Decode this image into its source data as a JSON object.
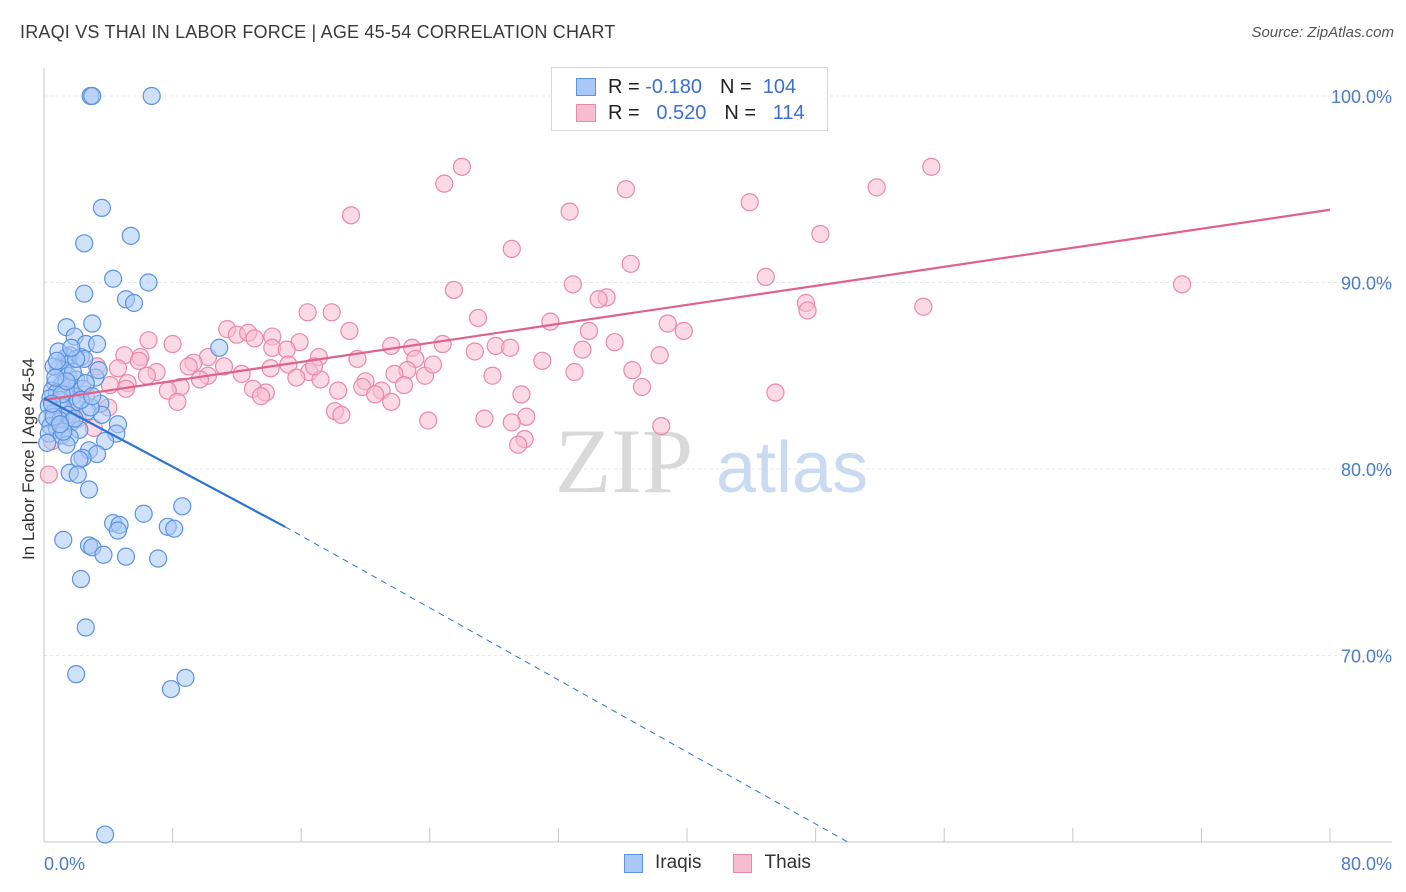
{
  "title": "IRAQI VS THAI IN LABOR FORCE | AGE 45-54 CORRELATION CHART",
  "source": "Source: ZipAtlas.com",
  "colors": {
    "iraqis_fill": "#a9c8f5",
    "iraqis_stroke": "#5b93e0",
    "iraqis_line": "#2e72d2",
    "thais_fill": "#f7bcd0",
    "thais_stroke": "#e889a8",
    "thais_line": "#e0608e",
    "axis_text": "#4a7cc7",
    "grid": "#e8e8e8"
  },
  "legend": {
    "rows": [
      {
        "r_label": "R =",
        "r_value": "-0.180",
        "n_label": "N =",
        "n_value": "104"
      },
      {
        "r_label": "R =",
        "r_value": "0.520",
        "n_label": "N =",
        "n_value": "114"
      }
    ]
  },
  "bottom_legend": {
    "iraqis": "Iraqis",
    "thais": "Thais"
  },
  "watermark": {
    "zip": "ZIP",
    "atlas": "atlas"
  },
  "chart_data": {
    "type": "scatter",
    "title": "IRAQI VS THAI IN LABOR FORCE | AGE 45-54 CORRELATION CHART",
    "xlabel": "",
    "ylabel": "In Labor Force | Age 45-54",
    "xlim": [
      0,
      80
    ],
    "ylim": [
      60,
      101.5
    ],
    "x_tick_labels": [
      "0.0%",
      "80.0%"
    ],
    "y_ticks": [
      70,
      80,
      90,
      100
    ],
    "y_tick_labels": [
      "70.0%",
      "80.0%",
      "90.0%",
      "100.0%"
    ],
    "grid": true,
    "legend_position": "top-center",
    "series": [
      {
        "name": "Iraqis",
        "r": -0.18,
        "n": 104,
        "trend": {
          "x": [
            0,
            15
          ],
          "y": [
            83.8,
            76.9
          ]
        },
        "trend_dashed": {
          "x": [
            15,
            50
          ],
          "y": [
            76.9,
            60.0
          ]
        },
        "points": [
          [
            2.9,
            100
          ],
          [
            3.0,
            100
          ],
          [
            6.7,
            100
          ],
          [
            3.6,
            94
          ],
          [
            5.4,
            92.5
          ],
          [
            2.5,
            92.1
          ],
          [
            4.3,
            90.2
          ],
          [
            6.5,
            90
          ],
          [
            5.1,
            89.1
          ],
          [
            5.6,
            88.9
          ],
          [
            2.5,
            89.4
          ],
          [
            3.0,
            87.8
          ],
          [
            1.4,
            87.6
          ],
          [
            1.9,
            87.1
          ],
          [
            2.6,
            86.7
          ],
          [
            3.3,
            86.7
          ],
          [
            1.6,
            86.1
          ],
          [
            1.4,
            86.0
          ],
          [
            2.3,
            86.0
          ],
          [
            2.5,
            85.9
          ],
          [
            1.3,
            85.6
          ],
          [
            0.9,
            85.4
          ],
          [
            1.2,
            85.3
          ],
          [
            0.6,
            85.5
          ],
          [
            1.5,
            85.0
          ],
          [
            2.0,
            84.8
          ],
          [
            0.7,
            84.6
          ],
          [
            1.1,
            84.5
          ],
          [
            1.6,
            84.4
          ],
          [
            0.5,
            84.2
          ],
          [
            0.8,
            84.1
          ],
          [
            1.3,
            84.0
          ],
          [
            1.8,
            83.9
          ],
          [
            0.4,
            83.8
          ],
          [
            1.0,
            83.7
          ],
          [
            2.1,
            83.6
          ],
          [
            3.5,
            83.5
          ],
          [
            0.3,
            83.4
          ],
          [
            1.2,
            83.3
          ],
          [
            2.7,
            83.1
          ],
          [
            0.6,
            83.0
          ],
          [
            1.5,
            82.9
          ],
          [
            3.6,
            82.9
          ],
          [
            0.2,
            82.7
          ],
          [
            1.0,
            82.6
          ],
          [
            1.7,
            82.5
          ],
          [
            4.6,
            82.4
          ],
          [
            0.4,
            82.3
          ],
          [
            0.8,
            82.2
          ],
          [
            2.2,
            82.1
          ],
          [
            0.3,
            81.9
          ],
          [
            1.1,
            81.8
          ],
          [
            4.5,
            81.9
          ],
          [
            1.6,
            81.7
          ],
          [
            3.8,
            81.5
          ],
          [
            0.2,
            81.4
          ],
          [
            1.4,
            81.3
          ],
          [
            2.8,
            81.0
          ],
          [
            3.3,
            80.8
          ],
          [
            2.4,
            80.6
          ],
          [
            2.2,
            80.5
          ],
          [
            1.6,
            79.8
          ],
          [
            2.1,
            79.7
          ],
          [
            2.8,
            78.9
          ],
          [
            8.6,
            78.0
          ],
          [
            6.2,
            77.6
          ],
          [
            4.3,
            77.1
          ],
          [
            4.7,
            77.0
          ],
          [
            7.7,
            76.9
          ],
          [
            8.1,
            76.8
          ],
          [
            4.6,
            76.7
          ],
          [
            1.2,
            76.2
          ],
          [
            2.8,
            75.9
          ],
          [
            3.0,
            75.8
          ],
          [
            3.7,
            75.4
          ],
          [
            5.1,
            75.3
          ],
          [
            7.1,
            75.2
          ],
          [
            2.3,
            74.1
          ],
          [
            2.6,
            71.5
          ],
          [
            2.0,
            69.0
          ],
          [
            8.8,
            68.8
          ],
          [
            7.9,
            68.2
          ],
          [
            3.8,
            60.4
          ],
          [
            10.9,
            86.5
          ],
          [
            1.1,
            84.0
          ],
          [
            2.4,
            84.3
          ],
          [
            1.8,
            85.2
          ],
          [
            0.6,
            82.8
          ],
          [
            2.9,
            83.3
          ],
          [
            1.9,
            82.7
          ],
          [
            3.2,
            84.9
          ],
          [
            0.9,
            86.3
          ],
          [
            2.0,
            85.9
          ],
          [
            1.4,
            84.7
          ],
          [
            0.5,
            83.5
          ],
          [
            2.6,
            84.6
          ],
          [
            1.2,
            82.0
          ],
          [
            3.4,
            85.3
          ],
          [
            1.7,
            86.5
          ],
          [
            0.8,
            85.8
          ],
          [
            2.3,
            83.7
          ],
          [
            1.0,
            82.4
          ],
          [
            0.7,
            84.9
          ],
          [
            3.0,
            83.9
          ]
        ]
      },
      {
        "name": "Thais",
        "r": 0.52,
        "n": 114,
        "trend": {
          "x": [
            0,
            80
          ],
          "y": [
            83.7,
            93.9
          ]
        },
        "points": [
          [
            41.7,
            100
          ],
          [
            26.0,
            96.2
          ],
          [
            55.2,
            96.2
          ],
          [
            24.9,
            95.3
          ],
          [
            36.2,
            95.0
          ],
          [
            51.8,
            95.1
          ],
          [
            43.9,
            94.3
          ],
          [
            32.7,
            93.8
          ],
          [
            19.1,
            93.6
          ],
          [
            48.3,
            92.6
          ],
          [
            29.1,
            91.8
          ],
          [
            36.5,
            91.0
          ],
          [
            44.9,
            90.3
          ],
          [
            32.9,
            89.9
          ],
          [
            70.8,
            89.9
          ],
          [
            25.5,
            89.6
          ],
          [
            35.0,
            89.2
          ],
          [
            34.5,
            89.1
          ],
          [
            47.4,
            88.9
          ],
          [
            54.7,
            88.7
          ],
          [
            16.4,
            88.4
          ],
          [
            17.9,
            88.4
          ],
          [
            27.0,
            88.1
          ],
          [
            47.5,
            88.5
          ],
          [
            31.5,
            87.9
          ],
          [
            38.8,
            87.8
          ],
          [
            39.8,
            87.4
          ],
          [
            19.0,
            87.4
          ],
          [
            33.9,
            87.4
          ],
          [
            11.4,
            87.5
          ],
          [
            12.0,
            87.2
          ],
          [
            12.7,
            87.3
          ],
          [
            13.1,
            87.0
          ],
          [
            14.2,
            87.1
          ],
          [
            6.5,
            86.9
          ],
          [
            8.0,
            86.7
          ],
          [
            15.9,
            86.8
          ],
          [
            24.8,
            86.7
          ],
          [
            21.6,
            86.6
          ],
          [
            28.1,
            86.6
          ],
          [
            29.0,
            86.5
          ],
          [
            14.2,
            86.5
          ],
          [
            22.9,
            86.5
          ],
          [
            15.1,
            86.4
          ],
          [
            33.5,
            86.4
          ],
          [
            5.0,
            86.1
          ],
          [
            6.0,
            86.0
          ],
          [
            10.2,
            86.0
          ],
          [
            17.1,
            86.0
          ],
          [
            23.1,
            85.9
          ],
          [
            38.3,
            86.1
          ],
          [
            5.9,
            85.8
          ],
          [
            9.3,
            85.7
          ],
          [
            11.2,
            85.5
          ],
          [
            15.2,
            85.6
          ],
          [
            3.3,
            85.5
          ],
          [
            4.6,
            85.4
          ],
          [
            7.0,
            85.2
          ],
          [
            14.1,
            85.4
          ],
          [
            16.5,
            85.2
          ],
          [
            22.6,
            85.3
          ],
          [
            36.6,
            85.3
          ],
          [
            21.8,
            85.1
          ],
          [
            6.4,
            85.0
          ],
          [
            10.2,
            85.0
          ],
          [
            23.7,
            85.0
          ],
          [
            9.7,
            84.8
          ],
          [
            17.2,
            84.8
          ],
          [
            5.2,
            84.6
          ],
          [
            20.0,
            84.7
          ],
          [
            4.1,
            84.5
          ],
          [
            8.5,
            84.4
          ],
          [
            13.0,
            84.3
          ],
          [
            19.8,
            84.4
          ],
          [
            37.2,
            84.4
          ],
          [
            7.7,
            84.2
          ],
          [
            13.8,
            84.1
          ],
          [
            18.3,
            84.2
          ],
          [
            21.0,
            84.2
          ],
          [
            2.6,
            84.0
          ],
          [
            13.5,
            83.9
          ],
          [
            20.6,
            84.0
          ],
          [
            29.7,
            84.0
          ],
          [
            45.5,
            84.1
          ],
          [
            8.3,
            83.6
          ],
          [
            21.6,
            83.6
          ],
          [
            4.0,
            83.3
          ],
          [
            18.1,
            83.1
          ],
          [
            18.5,
            82.9
          ],
          [
            30.0,
            82.8
          ],
          [
            23.9,
            82.6
          ],
          [
            27.4,
            82.7
          ],
          [
            29.1,
            82.5
          ],
          [
            38.4,
            82.3
          ],
          [
            29.9,
            81.6
          ],
          [
            29.5,
            81.3
          ],
          [
            3.1,
            82.2
          ],
          [
            1.6,
            83.0
          ],
          [
            2.1,
            82.7
          ],
          [
            0.5,
            81.5
          ],
          [
            0.3,
            79.7
          ],
          [
            5.1,
            84.3
          ],
          [
            26.8,
            86.3
          ],
          [
            31.0,
            85.8
          ],
          [
            12.3,
            85.1
          ],
          [
            16.8,
            85.5
          ],
          [
            19.5,
            85.9
          ],
          [
            9.0,
            85.5
          ],
          [
            35.5,
            86.8
          ],
          [
            22.4,
            84.5
          ],
          [
            27.9,
            85.0
          ],
          [
            15.7,
            84.9
          ],
          [
            24.2,
            85.6
          ],
          [
            33.0,
            85.2
          ]
        ]
      }
    ]
  }
}
